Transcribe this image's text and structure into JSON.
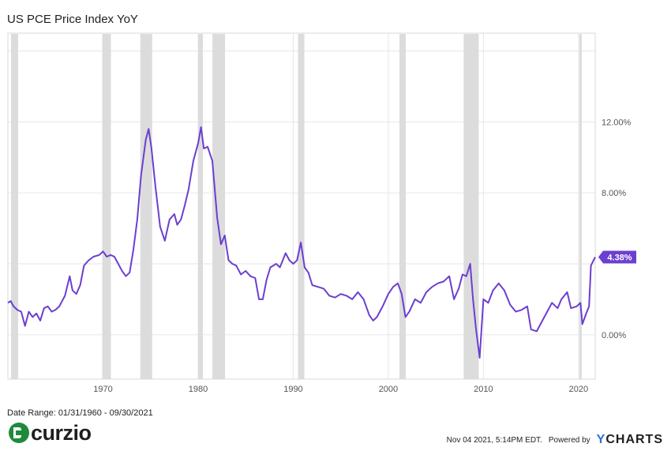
{
  "chart_data": {
    "type": "line",
    "title": "US PCE Price Index YoY",
    "x_ticks": [
      "1970",
      "1980",
      "1990",
      "2000",
      "2010",
      "2020"
    ],
    "y_ticks": [
      "0.00%",
      "8.00%",
      "12.00%"
    ],
    "x_range": [
      1960.0,
      2021.75
    ],
    "y_range": [
      -2.5,
      17.0
    ],
    "series": [
      {
        "name": "US PCE Price Index YoY",
        "color": "#6b3fd0",
        "points": [
          [
            1960.0,
            1.8
          ],
          [
            1960.3,
            1.9
          ],
          [
            1960.6,
            1.6
          ],
          [
            1961.0,
            1.4
          ],
          [
            1961.4,
            1.3
          ],
          [
            1961.8,
            0.5
          ],
          [
            1962.2,
            1.3
          ],
          [
            1962.6,
            1.0
          ],
          [
            1963.0,
            1.2
          ],
          [
            1963.4,
            0.8
          ],
          [
            1963.8,
            1.5
          ],
          [
            1964.2,
            1.6
          ],
          [
            1964.6,
            1.3
          ],
          [
            1965.0,
            1.4
          ],
          [
            1965.4,
            1.6
          ],
          [
            1966.0,
            2.2
          ],
          [
            1966.5,
            3.3
          ],
          [
            1966.8,
            2.5
          ],
          [
            1967.2,
            2.3
          ],
          [
            1967.6,
            2.8
          ],
          [
            1968.0,
            3.9
          ],
          [
            1968.5,
            4.2
          ],
          [
            1969.0,
            4.4
          ],
          [
            1969.6,
            4.5
          ],
          [
            1970.0,
            4.7
          ],
          [
            1970.4,
            4.4
          ],
          [
            1970.8,
            4.5
          ],
          [
            1971.2,
            4.4
          ],
          [
            1971.6,
            4.0
          ],
          [
            1972.0,
            3.6
          ],
          [
            1972.4,
            3.3
          ],
          [
            1972.8,
            3.5
          ],
          [
            1973.2,
            4.8
          ],
          [
            1973.6,
            6.5
          ],
          [
            1974.0,
            9.0
          ],
          [
            1974.5,
            11.0
          ],
          [
            1974.8,
            11.6
          ],
          [
            1975.1,
            10.5
          ],
          [
            1975.5,
            8.4
          ],
          [
            1976.0,
            6.1
          ],
          [
            1976.5,
            5.3
          ],
          [
            1977.0,
            6.5
          ],
          [
            1977.5,
            6.8
          ],
          [
            1977.8,
            6.2
          ],
          [
            1978.2,
            6.5
          ],
          [
            1978.6,
            7.3
          ],
          [
            1979.0,
            8.2
          ],
          [
            1979.5,
            9.8
          ],
          [
            1980.0,
            10.8
          ],
          [
            1980.3,
            11.7
          ],
          [
            1980.6,
            10.5
          ],
          [
            1981.0,
            10.6
          ],
          [
            1981.5,
            9.8
          ],
          [
            1982.0,
            6.6
          ],
          [
            1982.4,
            5.1
          ],
          [
            1982.8,
            5.6
          ],
          [
            1983.2,
            4.2
          ],
          [
            1983.6,
            4.0
          ],
          [
            1984.0,
            3.9
          ],
          [
            1984.5,
            3.4
          ],
          [
            1985.0,
            3.6
          ],
          [
            1985.5,
            3.3
          ],
          [
            1986.0,
            3.2
          ],
          [
            1986.4,
            2.0
          ],
          [
            1986.8,
            2.0
          ],
          [
            1987.2,
            3.1
          ],
          [
            1987.6,
            3.8
          ],
          [
            1988.2,
            4.0
          ],
          [
            1988.6,
            3.8
          ],
          [
            1989.2,
            4.6
          ],
          [
            1989.6,
            4.2
          ],
          [
            1990.0,
            4.0
          ],
          [
            1990.4,
            4.2
          ],
          [
            1990.8,
            5.2
          ],
          [
            1991.2,
            3.8
          ],
          [
            1991.6,
            3.5
          ],
          [
            1992.0,
            2.8
          ],
          [
            1992.6,
            2.7
          ],
          [
            1993.2,
            2.6
          ],
          [
            1993.8,
            2.2
          ],
          [
            1994.4,
            2.1
          ],
          [
            1995.0,
            2.3
          ],
          [
            1995.6,
            2.2
          ],
          [
            1996.2,
            2.0
          ],
          [
            1996.8,
            2.4
          ],
          [
            1997.4,
            2.0
          ],
          [
            1998.0,
            1.1
          ],
          [
            1998.4,
            0.8
          ],
          [
            1998.8,
            1.0
          ],
          [
            1999.4,
            1.6
          ],
          [
            2000.0,
            2.3
          ],
          [
            2000.5,
            2.7
          ],
          [
            2001.0,
            2.9
          ],
          [
            2001.4,
            2.3
          ],
          [
            2001.8,
            1.0
          ],
          [
            2002.2,
            1.3
          ],
          [
            2002.8,
            2.0
          ],
          [
            2003.4,
            1.8
          ],
          [
            2004.0,
            2.4
          ],
          [
            2004.6,
            2.7
          ],
          [
            2005.2,
            2.9
          ],
          [
            2005.8,
            3.0
          ],
          [
            2006.4,
            3.3
          ],
          [
            2006.9,
            2.0
          ],
          [
            2007.4,
            2.6
          ],
          [
            2007.8,
            3.4
          ],
          [
            2008.2,
            3.3
          ],
          [
            2008.6,
            4.0
          ],
          [
            2008.9,
            2.0
          ],
          [
            2009.2,
            0.4
          ],
          [
            2009.6,
            -1.3
          ],
          [
            2010.0,
            2.0
          ],
          [
            2010.5,
            1.8
          ],
          [
            2011.0,
            2.5
          ],
          [
            2011.6,
            2.9
          ],
          [
            2012.2,
            2.5
          ],
          [
            2012.8,
            1.7
          ],
          [
            2013.4,
            1.3
          ],
          [
            2014.0,
            1.4
          ],
          [
            2014.6,
            1.6
          ],
          [
            2015.0,
            0.3
          ],
          [
            2015.6,
            0.2
          ],
          [
            2016.2,
            0.8
          ],
          [
            2016.8,
            1.4
          ],
          [
            2017.2,
            1.8
          ],
          [
            2017.8,
            1.5
          ],
          [
            2018.2,
            2.0
          ],
          [
            2018.8,
            2.4
          ],
          [
            2019.2,
            1.5
          ],
          [
            2019.8,
            1.6
          ],
          [
            2020.2,
            1.8
          ],
          [
            2020.4,
            0.6
          ],
          [
            2020.8,
            1.2
          ],
          [
            2021.1,
            1.6
          ],
          [
            2021.3,
            3.9
          ],
          [
            2021.75,
            4.38
          ]
        ]
      }
    ],
    "recession_periods": [
      [
        1960.33,
        1961.08
      ],
      [
        1969.92,
        1970.83
      ],
      [
        1973.92,
        1975.17
      ],
      [
        1980.0,
        1980.5
      ],
      [
        1981.5,
        1982.83
      ],
      [
        1990.5,
        1991.17
      ],
      [
        2001.17,
        2001.83
      ],
      [
        2007.92,
        2009.5
      ],
      [
        2020.08,
        2020.33
      ]
    ],
    "last_value": 4.38,
    "last_value_label": "4.38%",
    "date_range": "Date Range: 01/31/1960 - 09/30/2021",
    "timestamp": "Nov 04 2021, 5:14PM EDT.",
    "powered_by": "Powered by",
    "brand_left": "curzio",
    "brand_right_y": "Y",
    "brand_right_rest": "CHARTS"
  }
}
